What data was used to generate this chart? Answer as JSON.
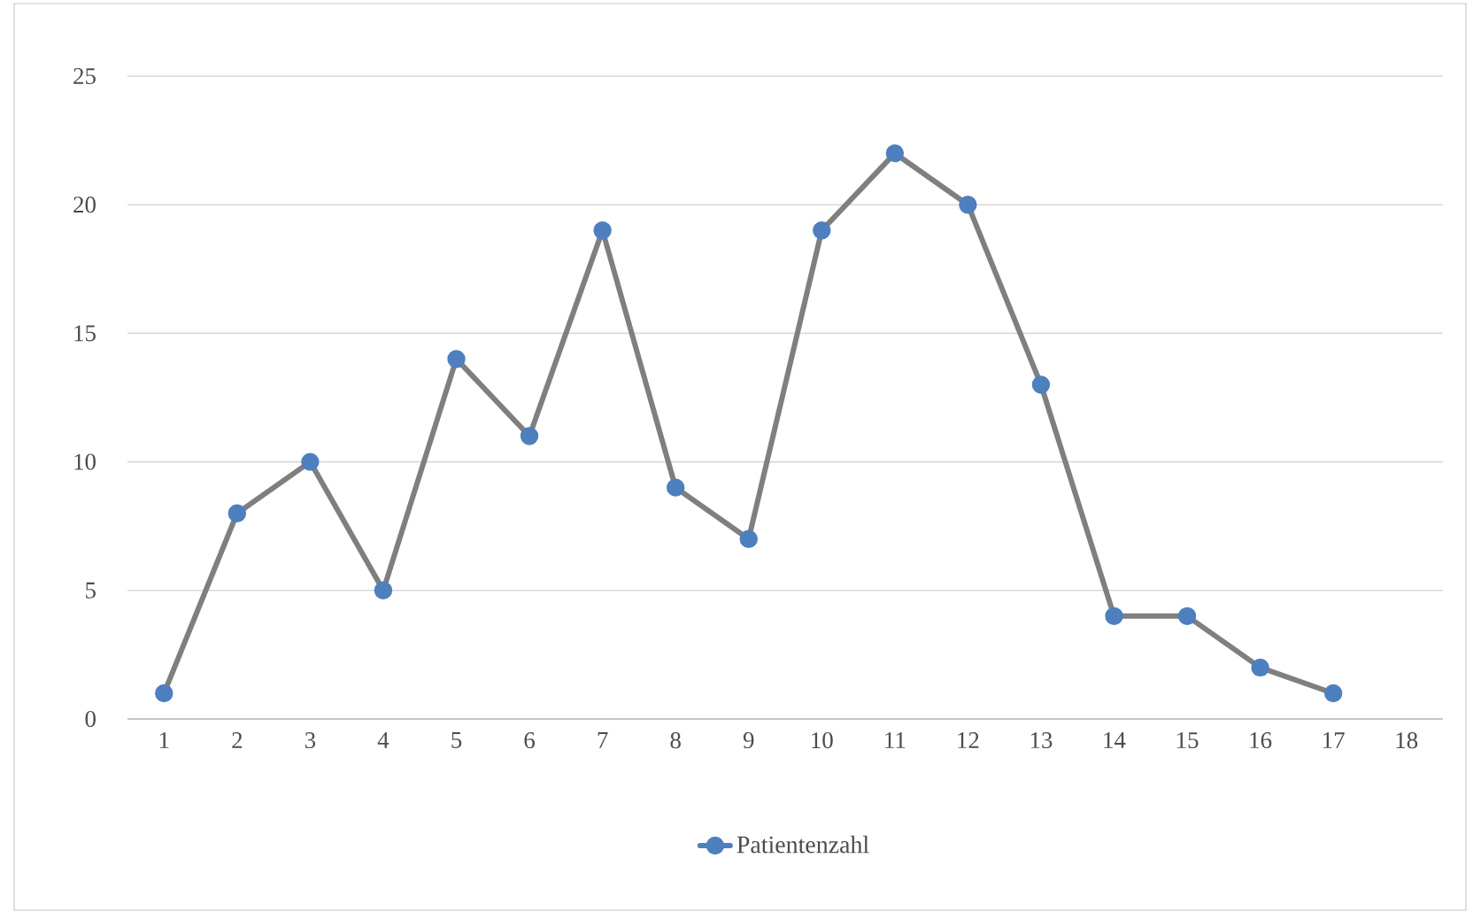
{
  "chart_data": {
    "type": "line",
    "categories": [
      "1",
      "2",
      "3",
      "4",
      "5",
      "6",
      "7",
      "8",
      "9",
      "10",
      "11",
      "12",
      "13",
      "14",
      "15",
      "16",
      "17",
      "18"
    ],
    "series": [
      {
        "name": "Patientenzahl",
        "color": "#7f7f7f",
        "colors": [
          "#4e7fbf",
          "#4e7fbf",
          "#4e7fbf",
          "#4e7fbf",
          "#4e7fbf",
          "#4e7fbf",
          "#4e7fbf",
          "#4e7fbf",
          "#4e7fbf",
          "#4e7fbf",
          "#4e7fbf",
          "#4e7fbf",
          "#4e7fbf",
          "#4e7fbf",
          "#4e7fbf",
          "#4e7fbf",
          "#4e7fbf",
          null
        ],
        "values": [
          1,
          8,
          10,
          5,
          14,
          11,
          19,
          9,
          7,
          19,
          22,
          20,
          13,
          4,
          4,
          2,
          1,
          null
        ]
      }
    ],
    "ylim": [
      0,
      25
    ],
    "yticks": [
      0,
      5,
      10,
      15,
      20,
      25
    ],
    "grid": "y",
    "legend": "bottom",
    "marker": "circle",
    "line_style": "solid"
  }
}
